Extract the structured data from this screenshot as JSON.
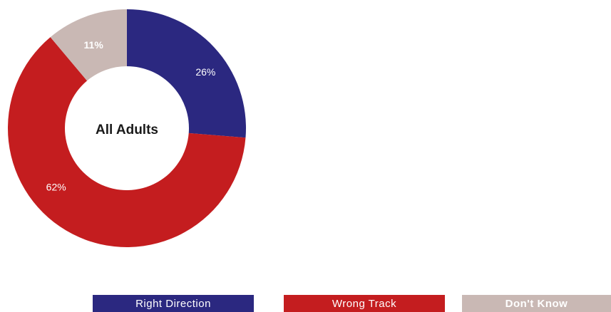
{
  "chart_data": {
    "type": "pie",
    "center_label": "All Adults",
    "slices": [
      {
        "label": "Right Direction",
        "value": 26,
        "display": "26%",
        "color": "#2b2880",
        "text_color": "#ffffff"
      },
      {
        "label": "Wrong Track",
        "value": 62,
        "display": "62%",
        "color": "#c41d1f",
        "text_color": "#ffffff"
      },
      {
        "label": "Don't Know",
        "value": 11,
        "display": "11%",
        "color": "#c9b8b4",
        "text_color": "#ffffff"
      }
    ],
    "legend_position": "bottom",
    "legend": [
      "Right Direction",
      "Wrong Track",
      "Don't Know"
    ]
  }
}
